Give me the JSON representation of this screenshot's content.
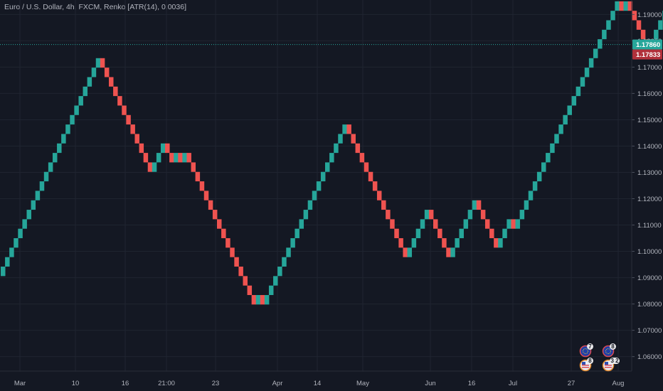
{
  "legend": {
    "title": "Euro / U.S. Dollar, 4h, FXCM, Renko [ATR(14), 0.0036]"
  },
  "colors": {
    "background": "#141823",
    "up": "#26a69a",
    "down": "#ef5350",
    "grid": "#1f2430",
    "text": "#b2b5be",
    "last_price_line": "#26a69a",
    "last_price_tag": "#26a69a",
    "prev_price_tag": "#b0303a"
  },
  "price_tags": {
    "last": "1.17860",
    "prev": "1.17833"
  },
  "events": [
    {
      "name": "event-eu-1",
      "flag": "eu-flag-icon",
      "count": "7"
    },
    {
      "name": "event-eu-2",
      "flag": "eu-flag-icon",
      "count": "8"
    },
    {
      "name": "event-us-1",
      "flag": "us-flag-icon",
      "count": "8"
    },
    {
      "name": "event-us-2",
      "flag": "us-flag-icon",
      "count": "3 2"
    }
  ],
  "chart_data": {
    "type": "renko",
    "title": "Euro / U.S. Dollar, 4h, FXCM, Renko [ATR(14), 0.0036]",
    "box_size": 0.0036,
    "ylim": [
      1.0545,
      1.1955
    ],
    "y_ticks": [
      "1.19000",
      "1.18000",
      "1.17000",
      "1.16000",
      "1.15000",
      "1.14000",
      "1.13000",
      "1.12000",
      "1.11000",
      "1.10000",
      "1.09000",
      "1.08000",
      "1.07000",
      "1.06000"
    ],
    "x_tick_labels": [
      "Mar",
      "10",
      "16",
      "21:00",
      "23",
      "Apr",
      "14",
      "May",
      "Jun",
      "16",
      "Jul",
      "27",
      "Aug"
    ],
    "start_price": 1.0906,
    "moves": [
      {
        "dir": "up",
        "count": 23
      },
      {
        "dir": "down",
        "count": 12
      },
      {
        "dir": "up",
        "count": 3
      },
      {
        "dir": "down",
        "count": 2
      },
      {
        "dir": "up",
        "count": 1
      },
      {
        "dir": "down",
        "count": 1
      },
      {
        "dir": "up",
        "count": 1
      },
      {
        "dir": "down",
        "count": 16
      },
      {
        "dir": "up",
        "count": 1
      },
      {
        "dir": "down",
        "count": 1
      },
      {
        "dir": "up",
        "count": 19
      },
      {
        "dir": "down",
        "count": 14
      },
      {
        "dir": "up",
        "count": 5
      },
      {
        "dir": "down",
        "count": 5
      },
      {
        "dir": "up",
        "count": 6
      },
      {
        "dir": "down",
        "count": 5
      },
      {
        "dir": "up",
        "count": 3
      },
      {
        "dir": "down",
        "count": 1
      },
      {
        "dir": "up",
        "count": 24
      },
      {
        "dir": "down",
        "count": 1
      },
      {
        "dir": "up",
        "count": 1
      },
      {
        "dir": "down",
        "count": 5
      },
      {
        "dir": "up",
        "count": 4
      },
      {
        "dir": "down",
        "count": 1
      },
      {
        "dir": "up",
        "count": 3
      },
      {
        "dir": "down",
        "count": 1
      },
      {
        "dir": "up",
        "count": 24
      }
    ],
    "last_price": 1.1786,
    "prev_close": 1.17833
  }
}
